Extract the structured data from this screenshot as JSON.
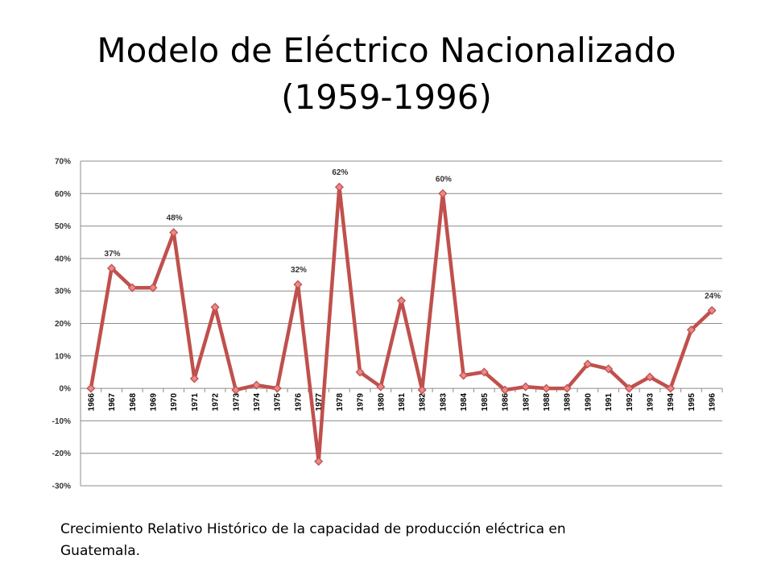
{
  "slide": {
    "title_line1": "Modelo de Eléctrico Nacionalizado",
    "title_line2": "(1959-1996)",
    "caption": "Crecimiento Relativo Histórico de la capacidad de producción eléctrica en Guatemala."
  },
  "chart_data": {
    "type": "line",
    "title": "",
    "xlabel": "",
    "ylabel": "",
    "categories": [
      "1966",
      "1967",
      "1968",
      "1969",
      "1970",
      "1971",
      "1972",
      "1973",
      "1974",
      "1975",
      "1976",
      "1977",
      "1978",
      "1979",
      "1980",
      "1981",
      "1982",
      "1983",
      "1984",
      "1985",
      "1986",
      "1987",
      "1988",
      "1989",
      "1990",
      "1991",
      "1992",
      "1993",
      "1994",
      "1995",
      "1996"
    ],
    "series": [
      {
        "values": [
          0,
          37,
          31,
          31,
          48,
          3,
          25,
          -0.5,
          1,
          0,
          32,
          -22.5,
          62,
          5,
          0.5,
          27,
          -0.5,
          60,
          4,
          5,
          -0.5,
          0.5,
          0,
          0,
          7.5,
          6,
          0,
          3.5,
          0,
          18,
          24
        ]
      }
    ],
    "data_labels": [
      {
        "category": "1967",
        "text": "37%"
      },
      {
        "category": "1970",
        "text": "48%"
      },
      {
        "category": "1976",
        "text": "32%"
      },
      {
        "category": "1978",
        "text": "62%"
      },
      {
        "category": "1983",
        "text": "60%"
      },
      {
        "category": "1996",
        "text": "24%"
      }
    ],
    "y_ticks": [
      "70%",
      "60%",
      "50%",
      "40%",
      "30%",
      "20%",
      "10%",
      "0%",
      "-10%",
      "-20%",
      "-30%"
    ],
    "ylim": [
      -30,
      70
    ],
    "y_step": 10,
    "grid": true,
    "legend": "none",
    "colors": {
      "line": "#c0504d",
      "marker_fill": "#e8898a",
      "marker_stroke": "#c0504d",
      "grid": "#8c8c8c"
    }
  }
}
